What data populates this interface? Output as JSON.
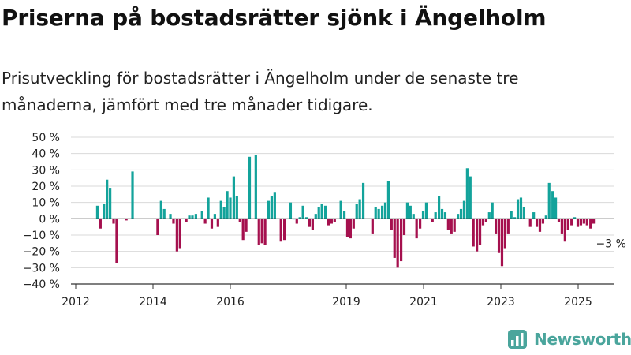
{
  "header": {
    "title": "Priserna på bostadsrätter sjönk i Ängelholm",
    "subtitle": "Prisutveckling för bostadsrätter i Ängelholm under de senaste tre månaderna, jämfört med tre månader tidigare."
  },
  "brand": {
    "name": "Newsworthy",
    "color": "#4aa59c"
  },
  "colors": {
    "positive": "#13a39b",
    "negative": "#a5104e",
    "grid": "#d9d9d9",
    "axis": "#333333"
  },
  "chart_data": {
    "type": "bar",
    "title": "",
    "xlabel": "",
    "ylabel": "",
    "ylim": [
      -40,
      50
    ],
    "y_ticks": [
      50,
      40,
      30,
      20,
      10,
      0,
      -10,
      -20,
      -30,
      -40
    ],
    "y_tick_labels": [
      "50 %",
      "40 %",
      "30 %",
      "20 %",
      "10 %",
      "0 %",
      "−10 %",
      "−20 %",
      "−30 %",
      "−40 %"
    ],
    "x_range": [
      2012.0,
      2026.0
    ],
    "x_ticks": [
      2012,
      2014,
      2016,
      2019,
      2021,
      2023,
      2025
    ],
    "x_tick_labels": [
      "2012",
      "2014",
      "2016",
      "2019",
      "2021",
      "2023",
      "2025"
    ],
    "grid": "horizontal",
    "annotation": {
      "text": "−3 %",
      "x": 2025.5,
      "value": -3
    },
    "series": [
      {
        "values": [
          {
            "x": 2012.56,
            "value": 8
          },
          {
            "x": 2012.64,
            "value": -6
          },
          {
            "x": 2012.73,
            "value": 9
          },
          {
            "x": 2012.81,
            "value": 24
          },
          {
            "x": 2012.89,
            "value": 19
          },
          {
            "x": 2012.98,
            "value": -3
          },
          {
            "x": 2013.06,
            "value": -27
          },
          {
            "x": 2013.31,
            "value": -1
          },
          {
            "x": 2013.47,
            "value": 29
          },
          {
            "x": 2014.12,
            "value": -10
          },
          {
            "x": 2014.21,
            "value": 11
          },
          {
            "x": 2014.29,
            "value": 6
          },
          {
            "x": 2014.45,
            "value": 3
          },
          {
            "x": 2014.53,
            "value": -3
          },
          {
            "x": 2014.62,
            "value": -20
          },
          {
            "x": 2014.7,
            "value": -18
          },
          {
            "x": 2014.86,
            "value": -2
          },
          {
            "x": 2014.94,
            "value": 2
          },
          {
            "x": 2015.02,
            "value": 2
          },
          {
            "x": 2015.11,
            "value": 3
          },
          {
            "x": 2015.27,
            "value": 5
          },
          {
            "x": 2015.35,
            "value": -3
          },
          {
            "x": 2015.43,
            "value": 13
          },
          {
            "x": 2015.52,
            "value": -6
          },
          {
            "x": 2015.6,
            "value": 3
          },
          {
            "x": 2015.68,
            "value": -5
          },
          {
            "x": 2015.76,
            "value": 11
          },
          {
            "x": 2015.84,
            "value": 7
          },
          {
            "x": 2015.92,
            "value": 17
          },
          {
            "x": 2016.0,
            "value": 13
          },
          {
            "x": 2016.09,
            "value": 26
          },
          {
            "x": 2016.17,
            "value": 14
          },
          {
            "x": 2016.25,
            "value": -2
          },
          {
            "x": 2016.33,
            "value": -13
          },
          {
            "x": 2016.41,
            "value": -8
          },
          {
            "x": 2016.5,
            "value": 38
          },
          {
            "x": 2016.66,
            "value": 39
          },
          {
            "x": 2016.74,
            "value": -16
          },
          {
            "x": 2016.82,
            "value": -15
          },
          {
            "x": 2016.9,
            "value": -16
          },
          {
            "x": 2016.99,
            "value": 11
          },
          {
            "x": 2017.07,
            "value": 14
          },
          {
            "x": 2017.15,
            "value": 16
          },
          {
            "x": 2017.31,
            "value": -14
          },
          {
            "x": 2017.4,
            "value": -13
          },
          {
            "x": 2017.56,
            "value": 10
          },
          {
            "x": 2017.64,
            "value": 0
          },
          {
            "x": 2017.72,
            "value": -3
          },
          {
            "x": 2017.8,
            "value": 1
          },
          {
            "x": 2017.88,
            "value": 8
          },
          {
            "x": 2017.97,
            "value": 1
          },
          {
            "x": 2018.05,
            "value": -5
          },
          {
            "x": 2018.13,
            "value": -7
          },
          {
            "x": 2018.21,
            "value": 3
          },
          {
            "x": 2018.29,
            "value": 7
          },
          {
            "x": 2018.37,
            "value": 9
          },
          {
            "x": 2018.46,
            "value": 8
          },
          {
            "x": 2018.54,
            "value": -4
          },
          {
            "x": 2018.62,
            "value": -3
          },
          {
            "x": 2018.7,
            "value": -2
          },
          {
            "x": 2018.86,
            "value": 11
          },
          {
            "x": 2018.95,
            "value": 5
          },
          {
            "x": 2019.03,
            "value": -11
          },
          {
            "x": 2019.11,
            "value": -12
          },
          {
            "x": 2019.19,
            "value": -6
          },
          {
            "x": 2019.27,
            "value": 9
          },
          {
            "x": 2019.35,
            "value": 12
          },
          {
            "x": 2019.44,
            "value": 22
          },
          {
            "x": 2019.68,
            "value": -9
          },
          {
            "x": 2019.76,
            "value": 7
          },
          {
            "x": 2019.84,
            "value": 6
          },
          {
            "x": 2019.93,
            "value": 8
          },
          {
            "x": 2020.01,
            "value": 10
          },
          {
            "x": 2020.09,
            "value": 23
          },
          {
            "x": 2020.17,
            "value": -7
          },
          {
            "x": 2020.25,
            "value": -24
          },
          {
            "x": 2020.33,
            "value": -30
          },
          {
            "x": 2020.42,
            "value": -26
          },
          {
            "x": 2020.5,
            "value": -10
          },
          {
            "x": 2020.58,
            "value": 10
          },
          {
            "x": 2020.66,
            "value": 8
          },
          {
            "x": 2020.74,
            "value": 3
          },
          {
            "x": 2020.82,
            "value": -12
          },
          {
            "x": 2020.91,
            "value": -6
          },
          {
            "x": 2020.99,
            "value": 5
          },
          {
            "x": 2021.07,
            "value": 10
          },
          {
            "x": 2021.23,
            "value": -2
          },
          {
            "x": 2021.31,
            "value": 4
          },
          {
            "x": 2021.4,
            "value": 14
          },
          {
            "x": 2021.48,
            "value": 6
          },
          {
            "x": 2021.56,
            "value": 4
          },
          {
            "x": 2021.64,
            "value": -7
          },
          {
            "x": 2021.72,
            "value": -9
          },
          {
            "x": 2021.8,
            "value": -8
          },
          {
            "x": 2021.89,
            "value": 3
          },
          {
            "x": 2021.97,
            "value": 6
          },
          {
            "x": 2022.05,
            "value": 11
          },
          {
            "x": 2022.13,
            "value": 31
          },
          {
            "x": 2022.21,
            "value": 26
          },
          {
            "x": 2022.29,
            "value": -17
          },
          {
            "x": 2022.38,
            "value": -20
          },
          {
            "x": 2022.46,
            "value": -16
          },
          {
            "x": 2022.54,
            "value": -4
          },
          {
            "x": 2022.62,
            "value": -2
          },
          {
            "x": 2022.7,
            "value": 4
          },
          {
            "x": 2022.78,
            "value": 10
          },
          {
            "x": 2022.87,
            "value": -9
          },
          {
            "x": 2022.95,
            "value": -21
          },
          {
            "x": 2023.03,
            "value": -29
          },
          {
            "x": 2023.11,
            "value": -18
          },
          {
            "x": 2023.19,
            "value": -9
          },
          {
            "x": 2023.27,
            "value": 5
          },
          {
            "x": 2023.36,
            "value": 1
          },
          {
            "x": 2023.44,
            "value": 12
          },
          {
            "x": 2023.52,
            "value": 13
          },
          {
            "x": 2023.6,
            "value": 7
          },
          {
            "x": 2023.76,
            "value": -5
          },
          {
            "x": 2023.85,
            "value": 4
          },
          {
            "x": 2023.93,
            "value": -5
          },
          {
            "x": 2024.01,
            "value": -8
          },
          {
            "x": 2024.09,
            "value": -3
          },
          {
            "x": 2024.17,
            "value": 2
          },
          {
            "x": 2024.25,
            "value": 22
          },
          {
            "x": 2024.34,
            "value": 17
          },
          {
            "x": 2024.42,
            "value": 13
          },
          {
            "x": 2024.5,
            "value": -2
          },
          {
            "x": 2024.58,
            "value": -9
          },
          {
            "x": 2024.66,
            "value": -14
          },
          {
            "x": 2024.74,
            "value": -7
          },
          {
            "x": 2024.83,
            "value": -4
          },
          {
            "x": 2024.91,
            "value": 1
          },
          {
            "x": 2024.99,
            "value": -5
          },
          {
            "x": 2025.07,
            "value": -4
          },
          {
            "x": 2025.15,
            "value": -3
          },
          {
            "x": 2025.23,
            "value": -4
          },
          {
            "x": 2025.32,
            "value": -6
          },
          {
            "x": 2025.4,
            "value": -3
          }
        ]
      }
    ]
  }
}
